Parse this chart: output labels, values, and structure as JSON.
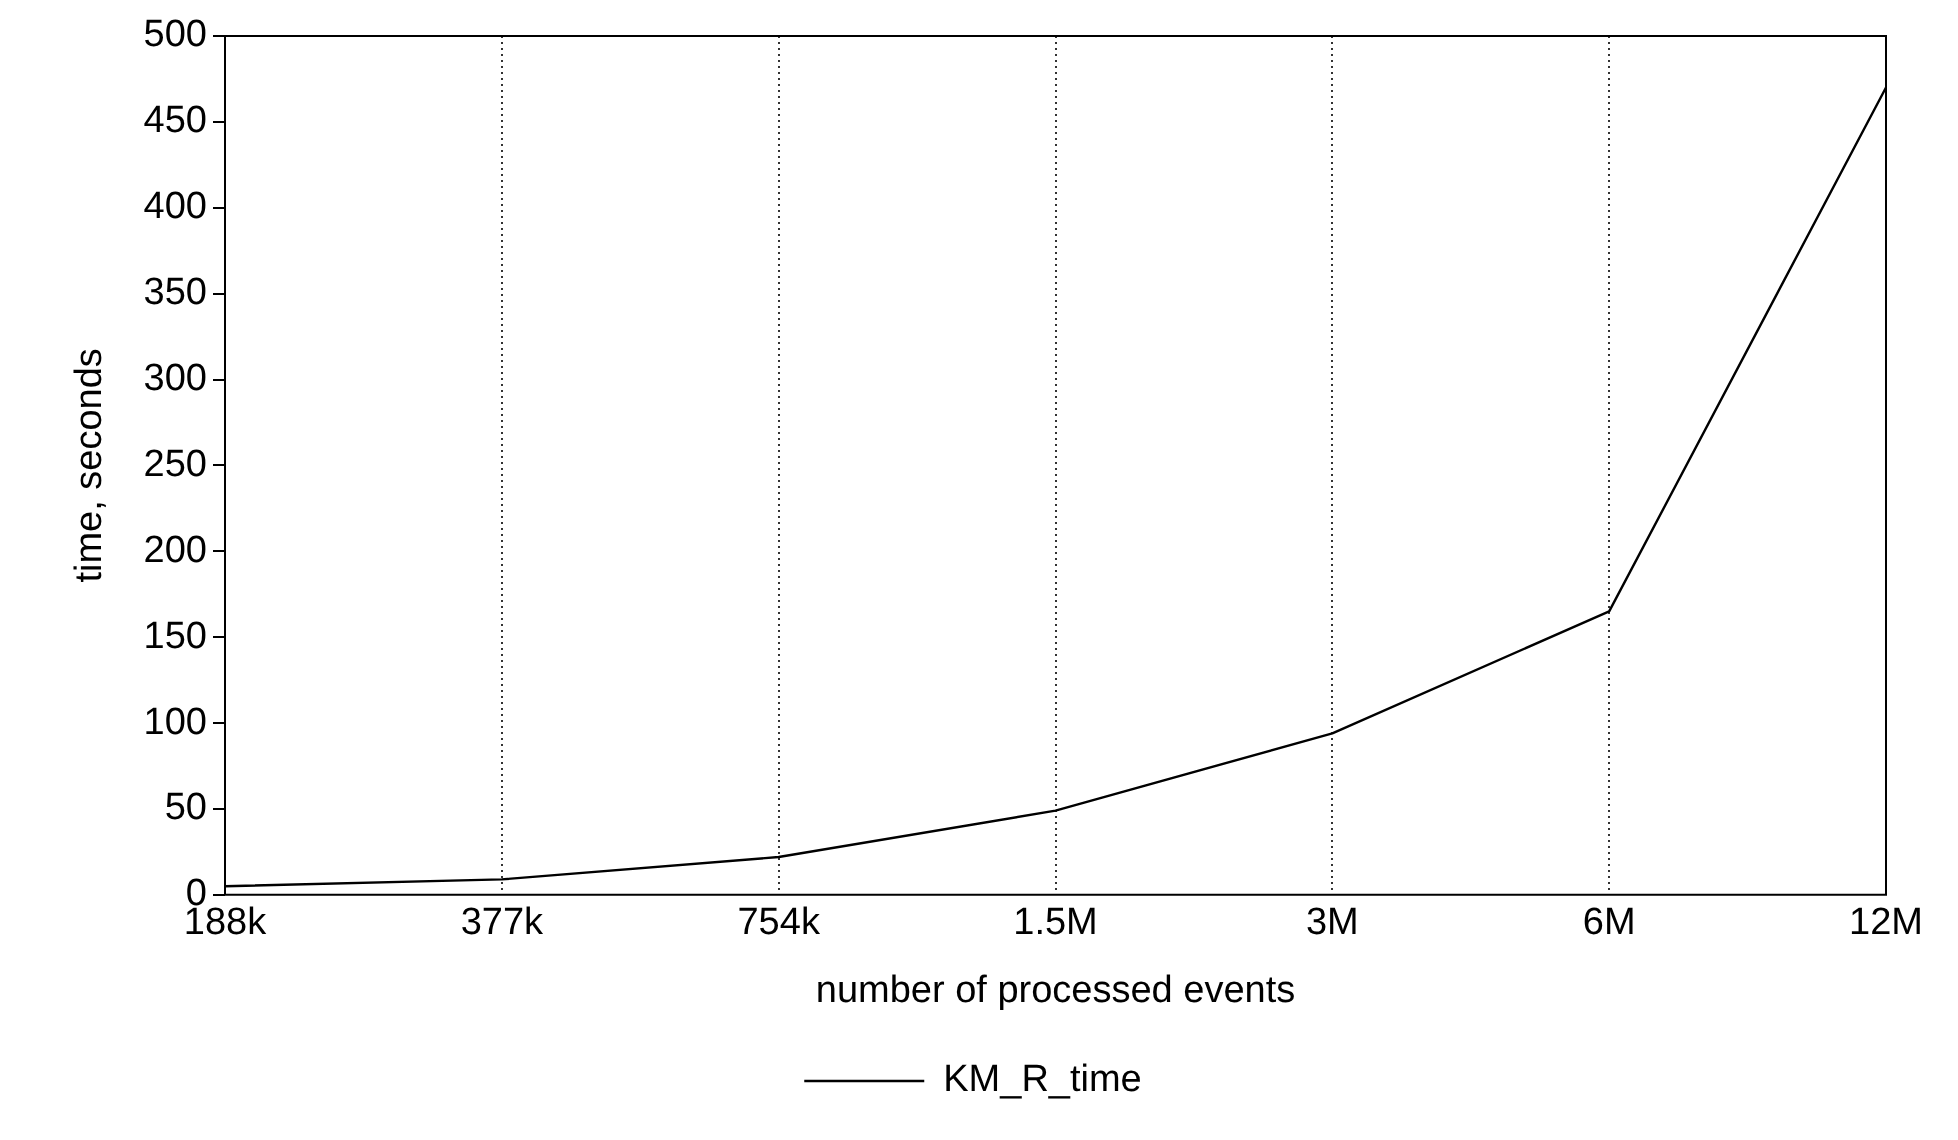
{
  "chart_data": {
    "type": "line",
    "xlabel": "number of processed events",
    "ylabel": "time, seconds",
    "categories": [
      "188k",
      "377k",
      "754k",
      "1.5M",
      "3M",
      "6M",
      "12M"
    ],
    "series": [
      {
        "name": "KM_R_time",
        "color": "#000000",
        "values": [
          5,
          9,
          22,
          49,
          94,
          165,
          470
        ]
      }
    ],
    "ylim": [
      0,
      500
    ],
    "yticks": [
      0,
      50,
      100,
      150,
      200,
      250,
      300,
      350,
      400,
      450,
      500
    ],
    "grid": "x",
    "legend": "bottom",
    "marker": "none",
    "line_style": "solid"
  }
}
